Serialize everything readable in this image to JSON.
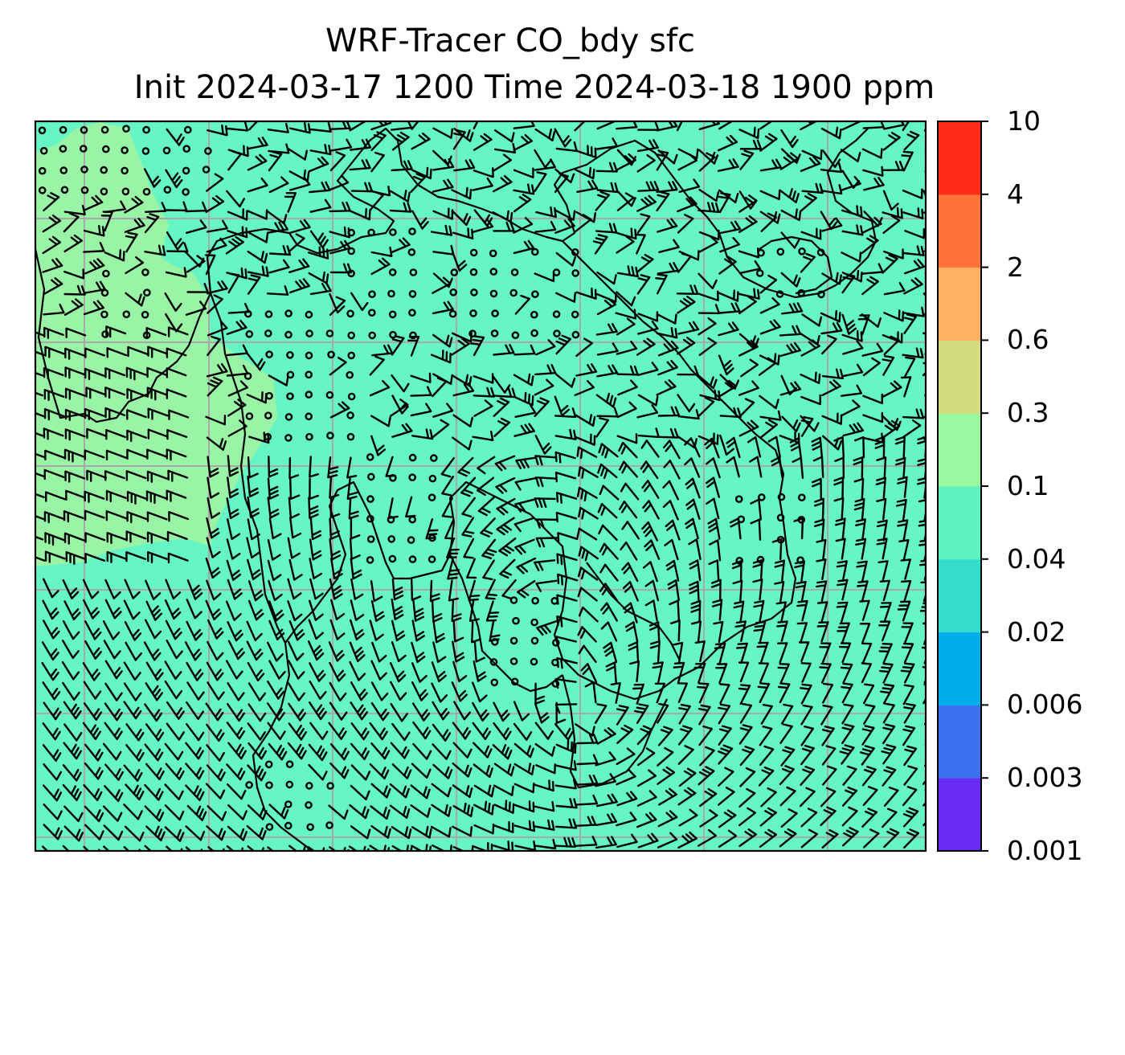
{
  "title": {
    "line1": "WRF-Tracer CO_bdy sfc",
    "line2": "Init 2024-03-17 1200 Time 2024-03-18 1900 ppm"
  },
  "colorbar": {
    "levels": [
      "0.001",
      "0.003",
      "0.006",
      "0.02",
      "0.04",
      "0.1",
      "0.3",
      "0.6",
      "2",
      "4",
      "10"
    ],
    "colors": [
      "#6a2cf5",
      "#3c72f0",
      "#00aeea",
      "#33dccd",
      "#5ff3c2",
      "#98f9a0",
      "#d4dd7d",
      "#ffb060",
      "#ff7238",
      "#ff2b16"
    ]
  },
  "map": {
    "background_color": "#66f5c4",
    "highlight_color": "#9af4a6",
    "gridline_color": "#a8a8a8",
    "coastline_color": "#000000"
  }
}
